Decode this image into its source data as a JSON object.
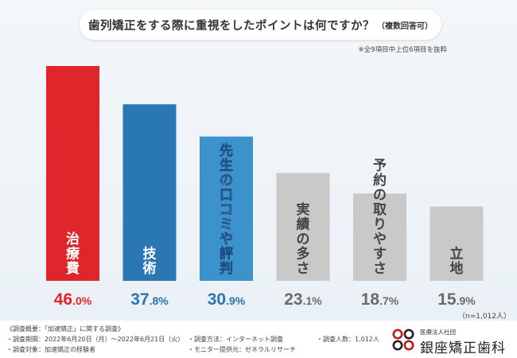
{
  "title": {
    "main": "歯列矯正をする際に重視をしたポイントは何ですか？",
    "note": "（複数回答可）"
  },
  "subnote": "※全9項目中上位6項目を抜粋",
  "sample_size": "（n=1,012人）",
  "colors": {
    "bar_red": "#e0262b",
    "bar_blue": "#2a78b3",
    "bar_lightblue": "#3c92ca",
    "bar_gray": "#c9c9c9",
    "value_red": "#e0262b",
    "value_blue": "#2e74ad",
    "value_gray": "#6b6b6b"
  },
  "chart_data": {
    "type": "bar",
    "title": "歯列矯正をする際に重視をしたポイントは何ですか？（複数回答可）",
    "categories": [
      "治療費",
      "技術",
      "先生の口コミや評判",
      "実績の多さ",
      "予約の取りやすさ",
      "立地"
    ],
    "values": [
      46.0,
      37.8,
      30.9,
      23.1,
      18.7,
      15.9
    ],
    "value_labels": [
      "46.0%",
      "37.8%",
      "30.9%",
      "23.1%",
      "18.7%",
      "15.9%"
    ],
    "ylim": [
      0,
      55
    ],
    "grid": false,
    "bar_colors": [
      "#e0262b",
      "#2a78b3",
      "#3c92ca",
      "#c9c9c9",
      "#c9c9c9",
      "#c9c9c9"
    ],
    "label_colors": [
      "#e0262b",
      "#2e74ad",
      "#2e74ad",
      "#6b6b6b",
      "#6b6b6b",
      "#6b6b6b"
    ],
    "category_text_colors": [
      "#ffffff",
      "#ffffff",
      "#ffffff",
      "#444444",
      "#444444",
      "#444444"
    ]
  },
  "footer": {
    "survey_heading": "《調査概要：「加速矯正」に関する調査》",
    "period": "・調査期間：2022年6月20日（月）〜2022年6月21日（火）",
    "target": "・調査対象：加速矯正の経験者",
    "method": "・調査方法：インターネット調査",
    "provider": "・モニター提供元：ゼネラルリサーチ",
    "count": "・調査人数：1,012人"
  },
  "logo": {
    "small": "医療法人社団",
    "name": "銀座矯正歯科"
  }
}
